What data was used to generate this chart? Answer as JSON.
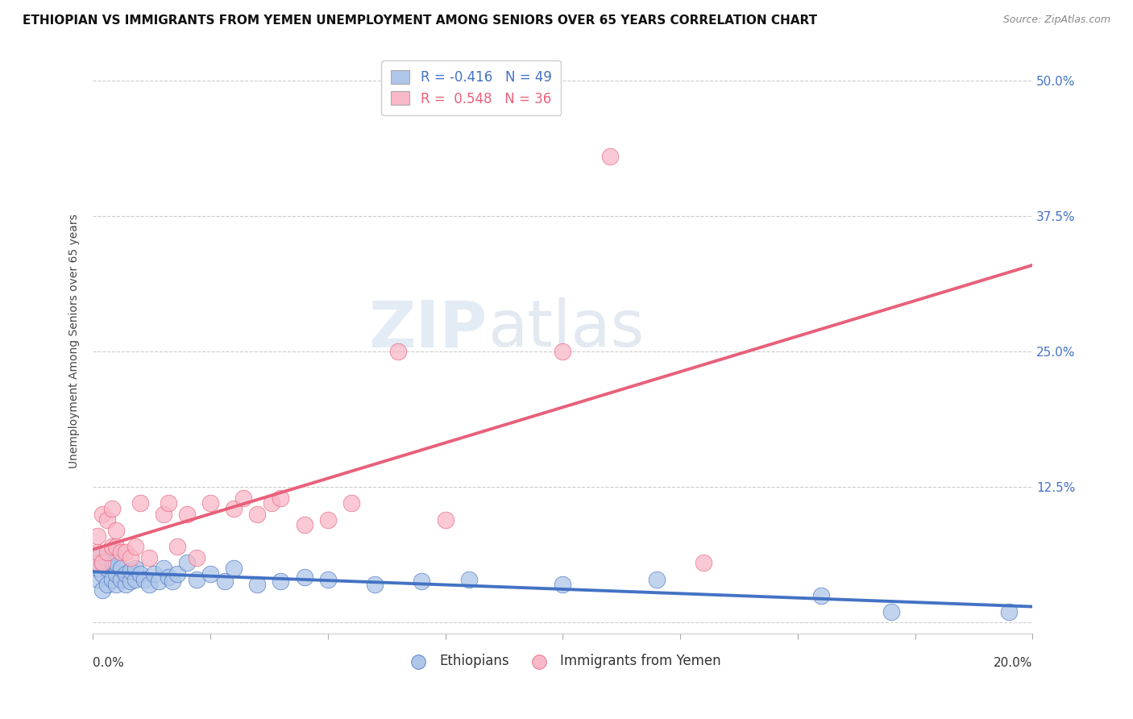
{
  "title": "ETHIOPIAN VS IMMIGRANTS FROM YEMEN UNEMPLOYMENT AMONG SENIORS OVER 65 YEARS CORRELATION CHART",
  "source": "Source: ZipAtlas.com",
  "ylabel": "Unemployment Among Seniors over 65 years",
  "yticks": [
    0.0,
    0.125,
    0.25,
    0.375,
    0.5
  ],
  "ytick_labels": [
    "",
    "12.5%",
    "25.0%",
    "37.5%",
    "50.0%"
  ],
  "xlim": [
    0.0,
    0.2
  ],
  "ylim": [
    -0.01,
    0.53
  ],
  "ethiopians_R": -0.416,
  "ethiopians_N": 49,
  "yemen_R": 0.548,
  "yemen_N": 36,
  "ethiopians_color": "#aec6e8",
  "ethiopia_line_color": "#4472c4",
  "yemen_color": "#f9b8c8",
  "yemen_line_color": "#e8607a",
  "watermark_zip": "ZIP",
  "watermark_atlas": "atlas",
  "ethiopians_x": [
    0.001,
    0.001,
    0.001,
    0.002,
    0.002,
    0.002,
    0.003,
    0.003,
    0.003,
    0.004,
    0.004,
    0.004,
    0.005,
    0.005,
    0.005,
    0.006,
    0.006,
    0.007,
    0.007,
    0.008,
    0.008,
    0.009,
    0.009,
    0.01,
    0.011,
    0.012,
    0.013,
    0.014,
    0.015,
    0.016,
    0.017,
    0.018,
    0.02,
    0.022,
    0.025,
    0.028,
    0.03,
    0.035,
    0.04,
    0.045,
    0.05,
    0.06,
    0.07,
    0.08,
    0.1,
    0.12,
    0.155,
    0.17,
    0.195
  ],
  "ethiopians_y": [
    0.04,
    0.05,
    0.06,
    0.03,
    0.045,
    0.055,
    0.035,
    0.05,
    0.06,
    0.04,
    0.055,
    0.065,
    0.035,
    0.045,
    0.055,
    0.04,
    0.05,
    0.035,
    0.045,
    0.038,
    0.048,
    0.04,
    0.05,
    0.045,
    0.04,
    0.035,
    0.045,
    0.038,
    0.05,
    0.042,
    0.038,
    0.045,
    0.055,
    0.04,
    0.045,
    0.038,
    0.05,
    0.035,
    0.038,
    0.042,
    0.04,
    0.035,
    0.038,
    0.04,
    0.035,
    0.04,
    0.025,
    0.01,
    0.01
  ],
  "yemen_x": [
    0.001,
    0.001,
    0.001,
    0.002,
    0.002,
    0.003,
    0.003,
    0.004,
    0.004,
    0.005,
    0.005,
    0.006,
    0.007,
    0.008,
    0.009,
    0.01,
    0.012,
    0.015,
    0.016,
    0.018,
    0.02,
    0.022,
    0.025,
    0.03,
    0.032,
    0.035,
    0.038,
    0.04,
    0.045,
    0.05,
    0.055,
    0.065,
    0.075,
    0.1,
    0.11,
    0.13
  ],
  "yemen_y": [
    0.055,
    0.065,
    0.08,
    0.055,
    0.1,
    0.065,
    0.095,
    0.07,
    0.105,
    0.07,
    0.085,
    0.065,
    0.065,
    0.06,
    0.07,
    0.11,
    0.06,
    0.1,
    0.11,
    0.07,
    0.1,
    0.06,
    0.11,
    0.105,
    0.115,
    0.1,
    0.11,
    0.115,
    0.09,
    0.095,
    0.11,
    0.25,
    0.095,
    0.25,
    0.43,
    0.055
  ]
}
